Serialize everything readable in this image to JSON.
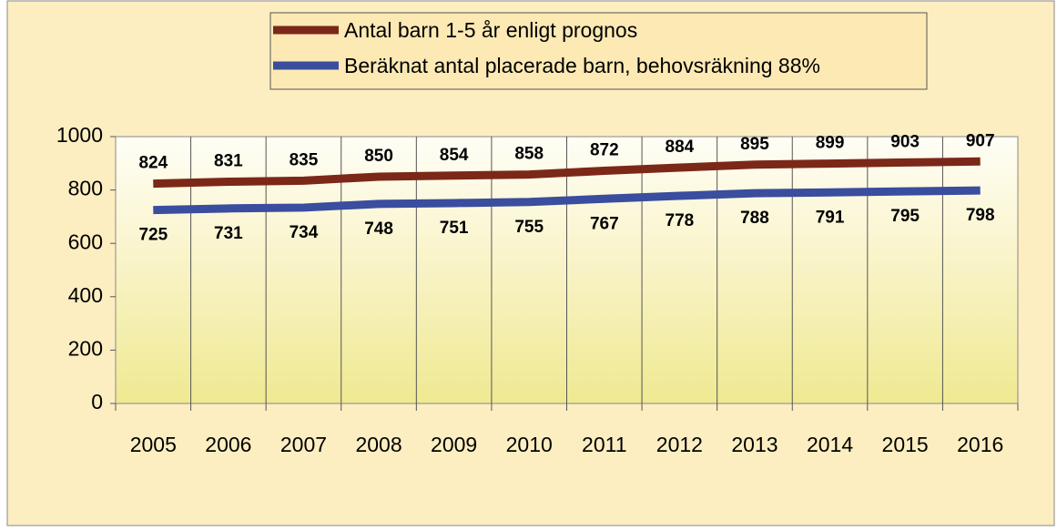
{
  "chart_data": {
    "type": "line",
    "categories": [
      "2005",
      "2006",
      "2007",
      "2008",
      "2009",
      "2010",
      "2011",
      "2012",
      "2013",
      "2014",
      "2015",
      "2016"
    ],
    "series": [
      {
        "name": "Antal barn 1-5 år enligt prognos",
        "color": "#7b2818",
        "values": [
          824,
          831,
          835,
          850,
          854,
          858,
          872,
          884,
          895,
          899,
          903,
          907
        ]
      },
      {
        "name": "Beräknat antal placerade barn, behovsräkning 88%",
        "color": "#3a4d9e",
        "values": [
          725,
          731,
          734,
          748,
          751,
          755,
          767,
          778,
          788,
          791,
          795,
          798
        ]
      }
    ],
    "ylim": [
      0,
      1000
    ],
    "yticks": [
      0,
      200,
      400,
      600,
      800,
      1000
    ],
    "grid": false,
    "legend": "top"
  }
}
